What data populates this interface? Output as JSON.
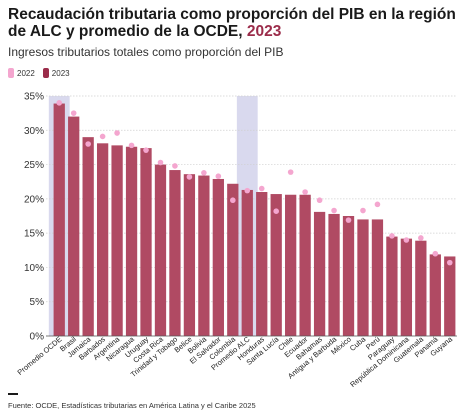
{
  "title": {
    "main": "Recaudación tributaria como proporción del PIB en la región de ALC y promedio de la OCDE,",
    "year": "2023"
  },
  "subtitle": "Ingresos tributarios totales como proporción del PIB",
  "legend": [
    {
      "label": "2022",
      "color": "#f4a6cf"
    },
    {
      "label": "2023",
      "color": "#9b2c4a"
    }
  ],
  "source": "Fuente: OCDE, Estadísticas tributarias en América Latina y el Caribe 2025",
  "colors": {
    "bar": "#b04a63",
    "dot": "#f4a6cf",
    "highlight": "#d9d9ee",
    "grid": "#d0d0d0"
  },
  "chart_data": {
    "type": "bar",
    "ylim": [
      0,
      35
    ],
    "yticks": [
      0,
      5,
      10,
      15,
      20,
      25,
      30,
      35
    ],
    "ytick_labels": [
      "0%",
      "5%",
      "10%",
      "15%",
      "20%",
      "25%",
      "30%",
      "35%"
    ],
    "categories": [
      "Promedio OCDE",
      "Brasil",
      "Jamaica",
      "Barbados",
      "Argentina",
      "Nicaragua",
      "Uruguay",
      "Costa Rica",
      "Trinidad y Tobago",
      "Belice",
      "Bolivia",
      "El Salvador",
      "Colombia",
      "Promedio ALC",
      "Honduras",
      "Santa Lucía",
      "Chile",
      "Ecuador",
      "Bahamas",
      "Antigua y Barbuda",
      "México",
      "Cuba",
      "Perú",
      "Paraguay",
      "República Dominicana",
      "Guatemala",
      "Panamá",
      "Guyana"
    ],
    "highlighted": [
      "Promedio OCDE",
      "Promedio ALC"
    ],
    "series": [
      {
        "name": "2023",
        "values": [
          33.9,
          32.0,
          29.0,
          28.1,
          27.8,
          27.6,
          27.4,
          25.0,
          24.2,
          23.6,
          23.4,
          22.9,
          22.2,
          21.3,
          21.0,
          20.7,
          20.6,
          20.6,
          18.1,
          17.8,
          17.5,
          17.0,
          17.0,
          14.5,
          14.2,
          13.9,
          11.9,
          11.6
        ]
      },
      {
        "name": "2022",
        "values": [
          34.0,
          32.5,
          28.0,
          29.1,
          29.6,
          27.8,
          27.1,
          25.3,
          24.8,
          23.2,
          23.8,
          23.3,
          19.8,
          21.2,
          21.5,
          18.2,
          23.9,
          21.0,
          19.8,
          18.3,
          16.9,
          18.3,
          19.2,
          14.6,
          14.0,
          14.3,
          12.0,
          10.7
        ]
      }
    ]
  }
}
